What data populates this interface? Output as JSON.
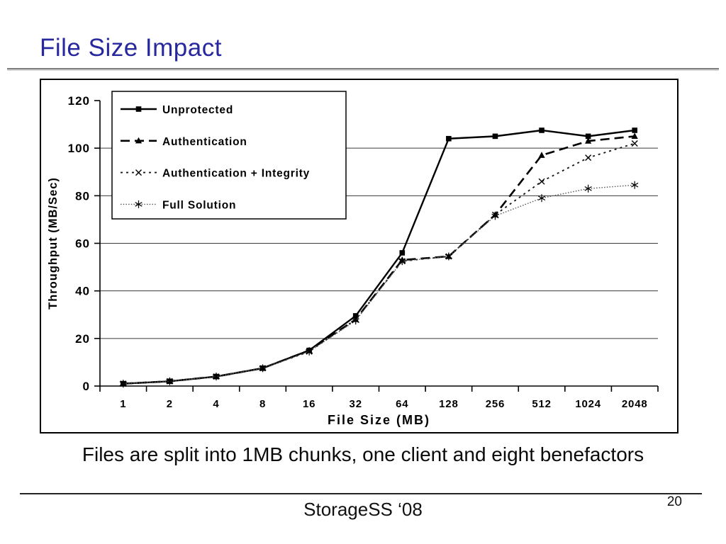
{
  "slide": {
    "title": "File Size Impact",
    "title_color": "#28289E",
    "caption": "Files are split into 1MB chunks, one client and eight benefactors",
    "footer": "StorageSS ‘08",
    "page_number": "20"
  },
  "chart_data": {
    "type": "line",
    "title": "",
    "xlabel": "File Size (MB)",
    "ylabel": "Throughput (MB/Sec)",
    "x_tick_labels": [
      "1",
      "2",
      "4",
      "8",
      "16",
      "32",
      "64",
      "128",
      "256",
      "512",
      "1024",
      "2048"
    ],
    "categories": [
      1,
      2,
      4,
      8,
      16,
      32,
      64,
      128,
      256,
      512,
      1024,
      2048
    ],
    "y_ticks": [
      0,
      20,
      40,
      60,
      80,
      100,
      120
    ],
    "ylim": [
      0,
      120
    ],
    "grid": "horizontal",
    "legend_position": "top-left-inside",
    "series": [
      {
        "name": "Unprotected",
        "marker": "square",
        "line_style": "solid",
        "color": "#000000",
        "values": [
          1,
          2,
          4,
          7.5,
          15,
          29.5,
          56,
          104,
          105,
          107.5,
          105,
          107.5
        ]
      },
      {
        "name": "Authentication",
        "marker": "triangle",
        "line_style": "dashed",
        "color": "#000000",
        "values": [
          1,
          2,
          4,
          7.5,
          15,
          28,
          53,
          54.5,
          72,
          97,
          103,
          105
        ]
      },
      {
        "name": "Authentication + Integrity",
        "marker": "x",
        "line_style": "dash-dot",
        "color": "#1a1a1a",
        "values": [
          1,
          2,
          4,
          7.5,
          14.5,
          28,
          52.5,
          54.5,
          72,
          86,
          96,
          102
        ]
      },
      {
        "name": "Full Solution",
        "marker": "asterisk",
        "line_style": "dotted",
        "color": "#555555",
        "values": [
          1,
          2,
          4,
          7.5,
          14.5,
          27.5,
          52.5,
          54.5,
          71.5,
          79,
          83,
          84.5
        ]
      }
    ]
  }
}
